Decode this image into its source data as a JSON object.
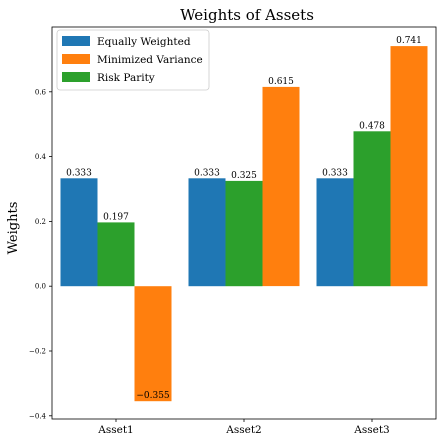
{
  "chart_data": {
    "type": "bar",
    "title": "Weights of Assets",
    "xlabel": "",
    "ylabel": "Weights",
    "categories": [
      "Asset1",
      "Asset2",
      "Asset3"
    ],
    "series": [
      {
        "name": "Equally Weighted",
        "color": "#1f77b4",
        "values": [
          0.333,
          0.333,
          0.333
        ],
        "labels": [
          "0.333",
          "0.333",
          "0.333"
        ]
      },
      {
        "name": "Minimized Variance",
        "color": "#ff7f0e",
        "values": [
          -0.355,
          0.615,
          0.741
        ],
        "labels": [
          "−0.355",
          "0.615",
          "0.741"
        ]
      },
      {
        "name": "Risk Parity",
        "color": "#2ca02c",
        "values": [
          0.197,
          0.325,
          0.478
        ],
        "labels": [
          "0.197",
          "0.325",
          "0.478"
        ]
      }
    ],
    "bar_order": [
      "Equally Weighted",
      "Risk Parity",
      "Minimized Variance"
    ],
    "ylim": [
      -0.41,
      0.8
    ],
    "yticks": [
      -0.4,
      -0.2,
      0.0,
      0.2,
      0.4,
      0.6
    ],
    "ytick_labels": [
      "−0.4",
      "−0.2",
      "0.0",
      "0.2",
      "0.4",
      "0.6"
    ],
    "grid": false,
    "legend_position": "top-left"
  }
}
